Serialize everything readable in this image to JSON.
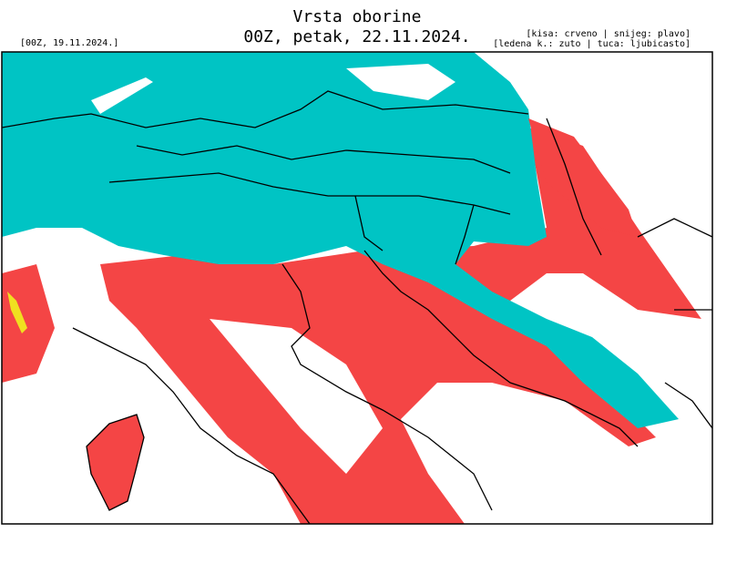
{
  "header": {
    "title": "Vrsta oborine",
    "run": "00Z, petak, 22.11.2024.",
    "init": "[00Z, 19.11.2024.]",
    "legend": [
      "[kisa: crveno | snijeg: plavo]",
      "[ledena k.: zuto | tuca: ljubicasto]"
    ]
  }
}
